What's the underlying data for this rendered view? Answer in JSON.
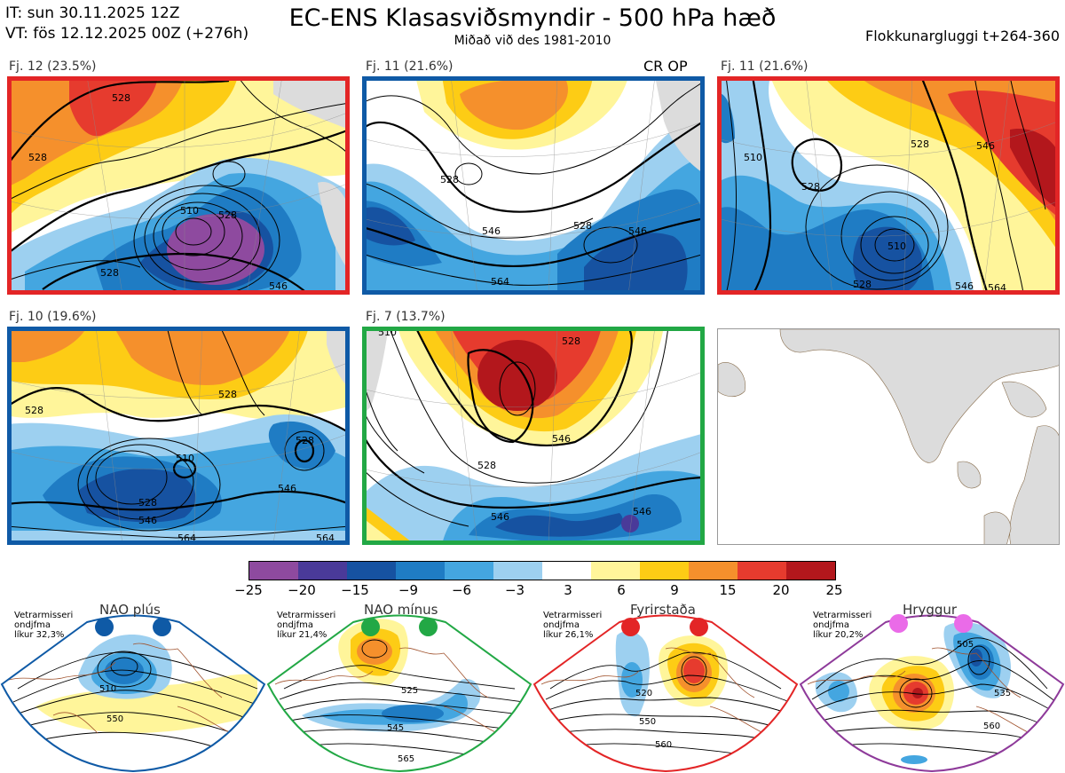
{
  "header": {
    "it_line": "IT: sun 30.11.2025 12Z",
    "vt_line": "VT: fös 12.12.2025 00Z  (+276h)",
    "title": "EC-ENS Klasasviðsmyndir - 500 hPa hæð",
    "subtitle": "Miðað við des 1981-2010",
    "window": "Flokkunargluggi t+264-360"
  },
  "panels": [
    {
      "label": "Fj. 12 (23.5%)",
      "frame_color": "#e32526",
      "contours": [
        "528",
        "528",
        "510",
        "528",
        "528",
        "546"
      ],
      "tag": ""
    },
    {
      "label": "Fj. 11 (21.6%)",
      "frame_color": "#0f5aa6",
      "contours": [
        "528",
        "546",
        "528",
        "546",
        "564"
      ],
      "tag": "CR OP"
    },
    {
      "label": "Fj. 11 (21.6%)",
      "frame_color": "#e32526",
      "contours": [
        "510",
        "528",
        "528",
        "546",
        "510",
        "528",
        "546",
        "564"
      ],
      "tag": ""
    },
    {
      "label": "Fj. 10 (19.6%)",
      "frame_color": "#0f5aa6",
      "contours": [
        "528",
        "528",
        "510",
        "528",
        "528",
        "546",
        "546",
        "564",
        "564"
      ],
      "tag": ""
    },
    {
      "label": "Fj. 7 (13.7%)",
      "frame_color": "#22a845",
      "contours": [
        "510",
        "528",
        "546",
        "528",
        "546",
        "546"
      ],
      "tag": ""
    }
  ],
  "colorbar": {
    "ticks": [
      "−25",
      "−20",
      "−15",
      "−9",
      "−6",
      "−3",
      "3",
      "6",
      "9",
      "15",
      "20",
      "25"
    ],
    "colors": [
      "#8e4a9f",
      "#4a3a99",
      "#1652a1",
      "#1f7cc4",
      "#44a6e0",
      "#9dd0f0",
      "#ffffff",
      "#fff59a",
      "#fdcc15",
      "#f5902c",
      "#e63b2e",
      "#b3171c"
    ]
  },
  "regimes": [
    {
      "title": "NAO plús",
      "note": [
        "Vetrarmisseri",
        "ondjfma",
        "líkur 32,3%"
      ],
      "dot_color": "#0f5aa6",
      "frame_color": "#0f5aa6",
      "contours": [
        "510",
        "550"
      ]
    },
    {
      "title": "NAO mínus",
      "note": [
        "Vetrarmisseri",
        "ondjfma",
        "líkur 21,4%"
      ],
      "dot_color": "#22a845",
      "frame_color": "#22a845",
      "contours": [
        "525",
        "545",
        "565"
      ]
    },
    {
      "title": "Fyrirstaða",
      "note": [
        "Vetrarmisseri",
        "ondjfma",
        "líkur 26,1%"
      ],
      "dot_color": "#e32526",
      "frame_color": "#e32526",
      "contours": [
        "520",
        "550",
        "560"
      ]
    },
    {
      "title": "Hryggur",
      "note": [
        "Vetrarmisseri",
        "ondjfma",
        "líkur 20,2%"
      ],
      "dot_color": "#ea6be8",
      "frame_color": "#8e3a9a",
      "contours": [
        "505",
        "535",
        "560"
      ]
    }
  ]
}
